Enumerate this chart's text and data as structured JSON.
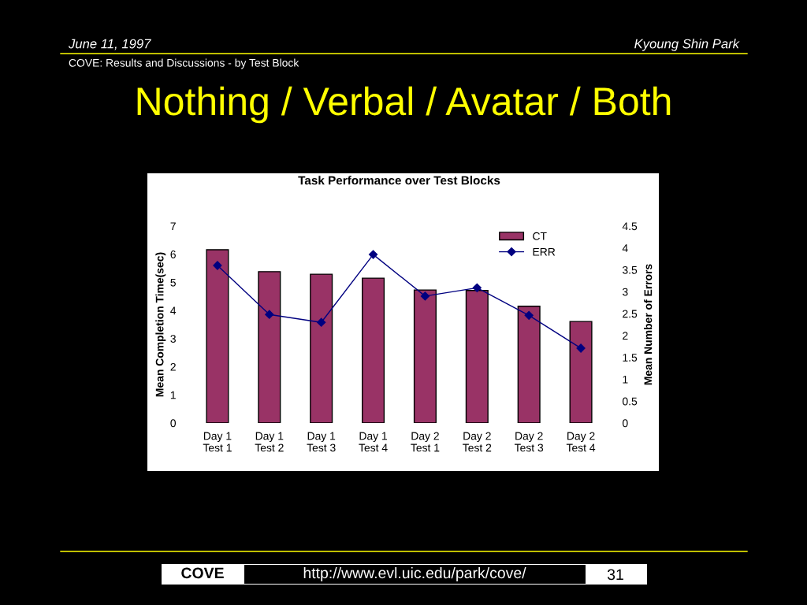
{
  "chart_data": {
    "type": "bar",
    "title": "Task Performance over Test Blocks",
    "ylabel": "Mean Completion Time(sec)",
    "y2label": "Mean Number of Errors",
    "categories": [
      "Day 1\nTest 1",
      "Day 1\nTest 2",
      "Day 1\nTest 3",
      "Day 1\nTest 4",
      "Day 2\nTest 1",
      "Day 2\nTest 2",
      "Day 2\nTest 3",
      "Day 2\nTest 4"
    ],
    "series": [
      {
        "name": "CT",
        "color": "#993366",
        "values": [
          6.16,
          5.38,
          5.29,
          5.15,
          4.73,
          4.71,
          4.15,
          3.61
        ]
      },
      {
        "name": "ERR",
        "type": "line",
        "axis": "y2",
        "color": "#000080",
        "marker": "diamond",
        "values": [
          3.6,
          2.48,
          2.3,
          3.85,
          2.9,
          3.09,
          2.46,
          1.71
        ]
      }
    ],
    "ylim": [
      0,
      7
    ],
    "yticks": [
      0,
      1,
      2,
      3,
      4,
      5,
      6,
      7
    ],
    "y2lim": [
      0,
      4.5
    ],
    "y2ticks": [
      0,
      0.5,
      1,
      1.5,
      2,
      2.5,
      3,
      3.5,
      4,
      4.5
    ],
    "grid": false,
    "legend": "top right",
    "annotations": [
      "June 11, 1997",
      "Kyoung Shin Park",
      "COVE: Results and Discussions - by Test Block",
      "Nothing / Verbal / Avatar / Both",
      "COVE",
      "http://www.evl.uic.edu/park/cove/",
      "31"
    ]
  }
}
